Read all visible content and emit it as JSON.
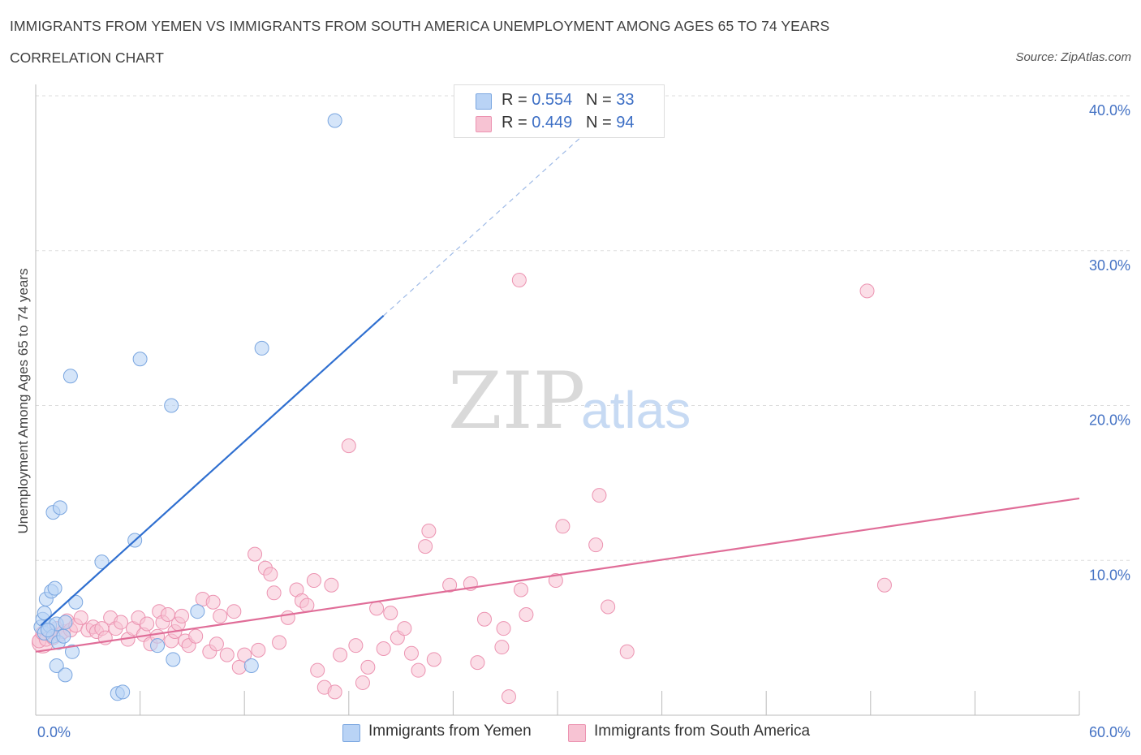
{
  "header": {
    "title": "IMMIGRANTS FROM YEMEN VS IMMIGRANTS FROM SOUTH AMERICA UNEMPLOYMENT AMONG AGES 65 TO 74 YEARS",
    "subtitle": "CORRELATION CHART",
    "source": "Source: ZipAtlas.com"
  },
  "watermark": {
    "zip": "ZIP",
    "atlas": "atlas"
  },
  "legend": {
    "yemen": {
      "r_label": "R = ",
      "r_value": "0.554",
      "n_label": "N = ",
      "n_value": "33"
    },
    "south_america": {
      "r_label": "R = ",
      "r_value": "0.449",
      "n_label": "N = ",
      "n_value": "94"
    }
  },
  "colors": {
    "yemen_fill": "#b9d3f5",
    "yemen_stroke": "#7aa6e0",
    "yemen_line": "#2f6fd0",
    "sa_fill": "#f7c3d3",
    "sa_stroke": "#ec93b1",
    "sa_line": "#e06d98",
    "axis_text": "#4472c4",
    "grid": "#dddddd"
  },
  "chart_data": {
    "type": "scatter",
    "title": "IMMIGRANTS FROM YEMEN VS IMMIGRANTS FROM SOUTH AMERICA UNEMPLOYMENT AMONG AGES 65 TO 74 YEARS",
    "subtitle": "CORRELATION CHART",
    "xlabel": "",
    "ylabel": "Unemployment Among Ages 65 to 74 years",
    "xlim": [
      0,
      60
    ],
    "ylim": [
      0,
      40
    ],
    "x_tick_labels": [
      "0.0%",
      "60.0%"
    ],
    "y_tick_labels": [
      "10.0%",
      "20.0%",
      "30.0%",
      "40.0%"
    ],
    "y_ticks": [
      10,
      20,
      30,
      40
    ],
    "grid": true,
    "legend_position": "top-center",
    "series": [
      {
        "name": "Immigrants from Yemen",
        "color": "#b9d3f5",
        "trend": {
          "x": [
            0.3,
            20.0
          ],
          "y": [
            5.8,
            25.8
          ],
          "extended_to": [
            32.6,
            38.6
          ]
        },
        "points": [
          [
            0.3,
            5.7
          ],
          [
            0.4,
            6.2
          ],
          [
            0.5,
            5.3
          ],
          [
            0.5,
            6.6
          ],
          [
            0.6,
            7.5
          ],
          [
            0.8,
            5.8
          ],
          [
            0.9,
            8.0
          ],
          [
            1.0,
            13.1
          ],
          [
            1.0,
            5.1
          ],
          [
            1.1,
            8.2
          ],
          [
            1.2,
            3.2
          ],
          [
            1.2,
            5.9
          ],
          [
            1.3,
            4.7
          ],
          [
            1.4,
            13.4
          ],
          [
            1.6,
            5.1
          ],
          [
            1.7,
            6.0
          ],
          [
            1.7,
            2.6
          ],
          [
            2.0,
            21.9
          ],
          [
            2.1,
            4.1
          ],
          [
            2.3,
            7.3
          ],
          [
            3.8,
            9.9
          ],
          [
            4.7,
            1.4
          ],
          [
            5.0,
            1.5
          ],
          [
            5.7,
            11.3
          ],
          [
            6.0,
            23.0
          ],
          [
            7.0,
            4.5
          ],
          [
            7.8,
            20.0
          ],
          [
            7.9,
            3.6
          ],
          [
            9.3,
            6.7
          ],
          [
            12.4,
            3.2
          ],
          [
            13.0,
            23.7
          ],
          [
            17.2,
            38.4
          ],
          [
            0.7,
            5.5
          ]
        ]
      },
      {
        "name": "Immigrants from South America",
        "color": "#f7c3d3",
        "trend": {
          "x": [
            0.0,
            60.0
          ],
          "y": [
            4.1,
            14.0
          ]
        },
        "points": [
          [
            0.2,
            4.8
          ],
          [
            0.4,
            5.3
          ],
          [
            0.6,
            4.9
          ],
          [
            0.8,
            5.4
          ],
          [
            1.0,
            5.0
          ],
          [
            1.2,
            5.6
          ],
          [
            1.4,
            5.2
          ],
          [
            1.6,
            5.4
          ],
          [
            1.8,
            6.1
          ],
          [
            2.0,
            5.5
          ],
          [
            2.3,
            5.8
          ],
          [
            2.6,
            6.3
          ],
          [
            3.0,
            5.5
          ],
          [
            3.3,
            5.7
          ],
          [
            3.5,
            5.4
          ],
          [
            3.8,
            5.6
          ],
          [
            4.0,
            5.0
          ],
          [
            4.3,
            6.3
          ],
          [
            4.6,
            5.6
          ],
          [
            4.9,
            6.0
          ],
          [
            5.3,
            4.9
          ],
          [
            5.6,
            5.6
          ],
          [
            5.9,
            6.3
          ],
          [
            6.2,
            5.2
          ],
          [
            6.4,
            5.9
          ],
          [
            6.6,
            4.6
          ],
          [
            7.0,
            5.1
          ],
          [
            7.1,
            6.7
          ],
          [
            7.3,
            6.0
          ],
          [
            7.6,
            6.5
          ],
          [
            7.8,
            4.8
          ],
          [
            8.0,
            5.4
          ],
          [
            8.2,
            5.9
          ],
          [
            8.4,
            6.4
          ],
          [
            8.6,
            4.8
          ],
          [
            8.8,
            4.5
          ],
          [
            9.2,
            5.1
          ],
          [
            9.6,
            7.5
          ],
          [
            10.0,
            4.1
          ],
          [
            10.2,
            7.3
          ],
          [
            10.4,
            4.6
          ],
          [
            10.6,
            6.4
          ],
          [
            11.0,
            3.9
          ],
          [
            11.4,
            6.7
          ],
          [
            11.7,
            3.1
          ],
          [
            12.0,
            3.9
          ],
          [
            12.6,
            10.4
          ],
          [
            12.8,
            4.2
          ],
          [
            13.2,
            9.5
          ],
          [
            13.5,
            9.1
          ],
          [
            13.7,
            7.9
          ],
          [
            14.0,
            4.7
          ],
          [
            14.5,
            6.3
          ],
          [
            15.0,
            8.1
          ],
          [
            15.3,
            7.4
          ],
          [
            15.6,
            7.1
          ],
          [
            16.0,
            8.7
          ],
          [
            16.2,
            2.9
          ],
          [
            16.6,
            1.8
          ],
          [
            17.0,
            8.4
          ],
          [
            17.2,
            1.5
          ],
          [
            17.5,
            3.9
          ],
          [
            18.0,
            17.4
          ],
          [
            18.4,
            4.5
          ],
          [
            18.8,
            2.1
          ],
          [
            19.1,
            3.1
          ],
          [
            19.6,
            6.9
          ],
          [
            20.0,
            4.3
          ],
          [
            20.4,
            6.6
          ],
          [
            20.8,
            5.0
          ],
          [
            21.2,
            5.6
          ],
          [
            21.6,
            4.0
          ],
          [
            22.0,
            2.9
          ],
          [
            22.4,
            10.9
          ],
          [
            22.6,
            11.9
          ],
          [
            22.9,
            3.6
          ],
          [
            23.8,
            8.4
          ],
          [
            25.0,
            8.5
          ],
          [
            25.4,
            3.4
          ],
          [
            25.8,
            6.2
          ],
          [
            26.8,
            4.4
          ],
          [
            26.9,
            5.6
          ],
          [
            27.2,
            1.2
          ],
          [
            27.8,
            28.1
          ],
          [
            27.9,
            8.1
          ],
          [
            28.2,
            6.5
          ],
          [
            29.9,
            8.7
          ],
          [
            30.3,
            12.2
          ],
          [
            32.2,
            11.0
          ],
          [
            32.4,
            14.2
          ],
          [
            32.9,
            7.0
          ],
          [
            34.0,
            4.1
          ],
          [
            47.8,
            27.4
          ],
          [
            48.8,
            8.4
          ]
        ]
      }
    ]
  },
  "bottom_legend": [
    "Immigrants from Yemen",
    "Immigrants from South America"
  ]
}
